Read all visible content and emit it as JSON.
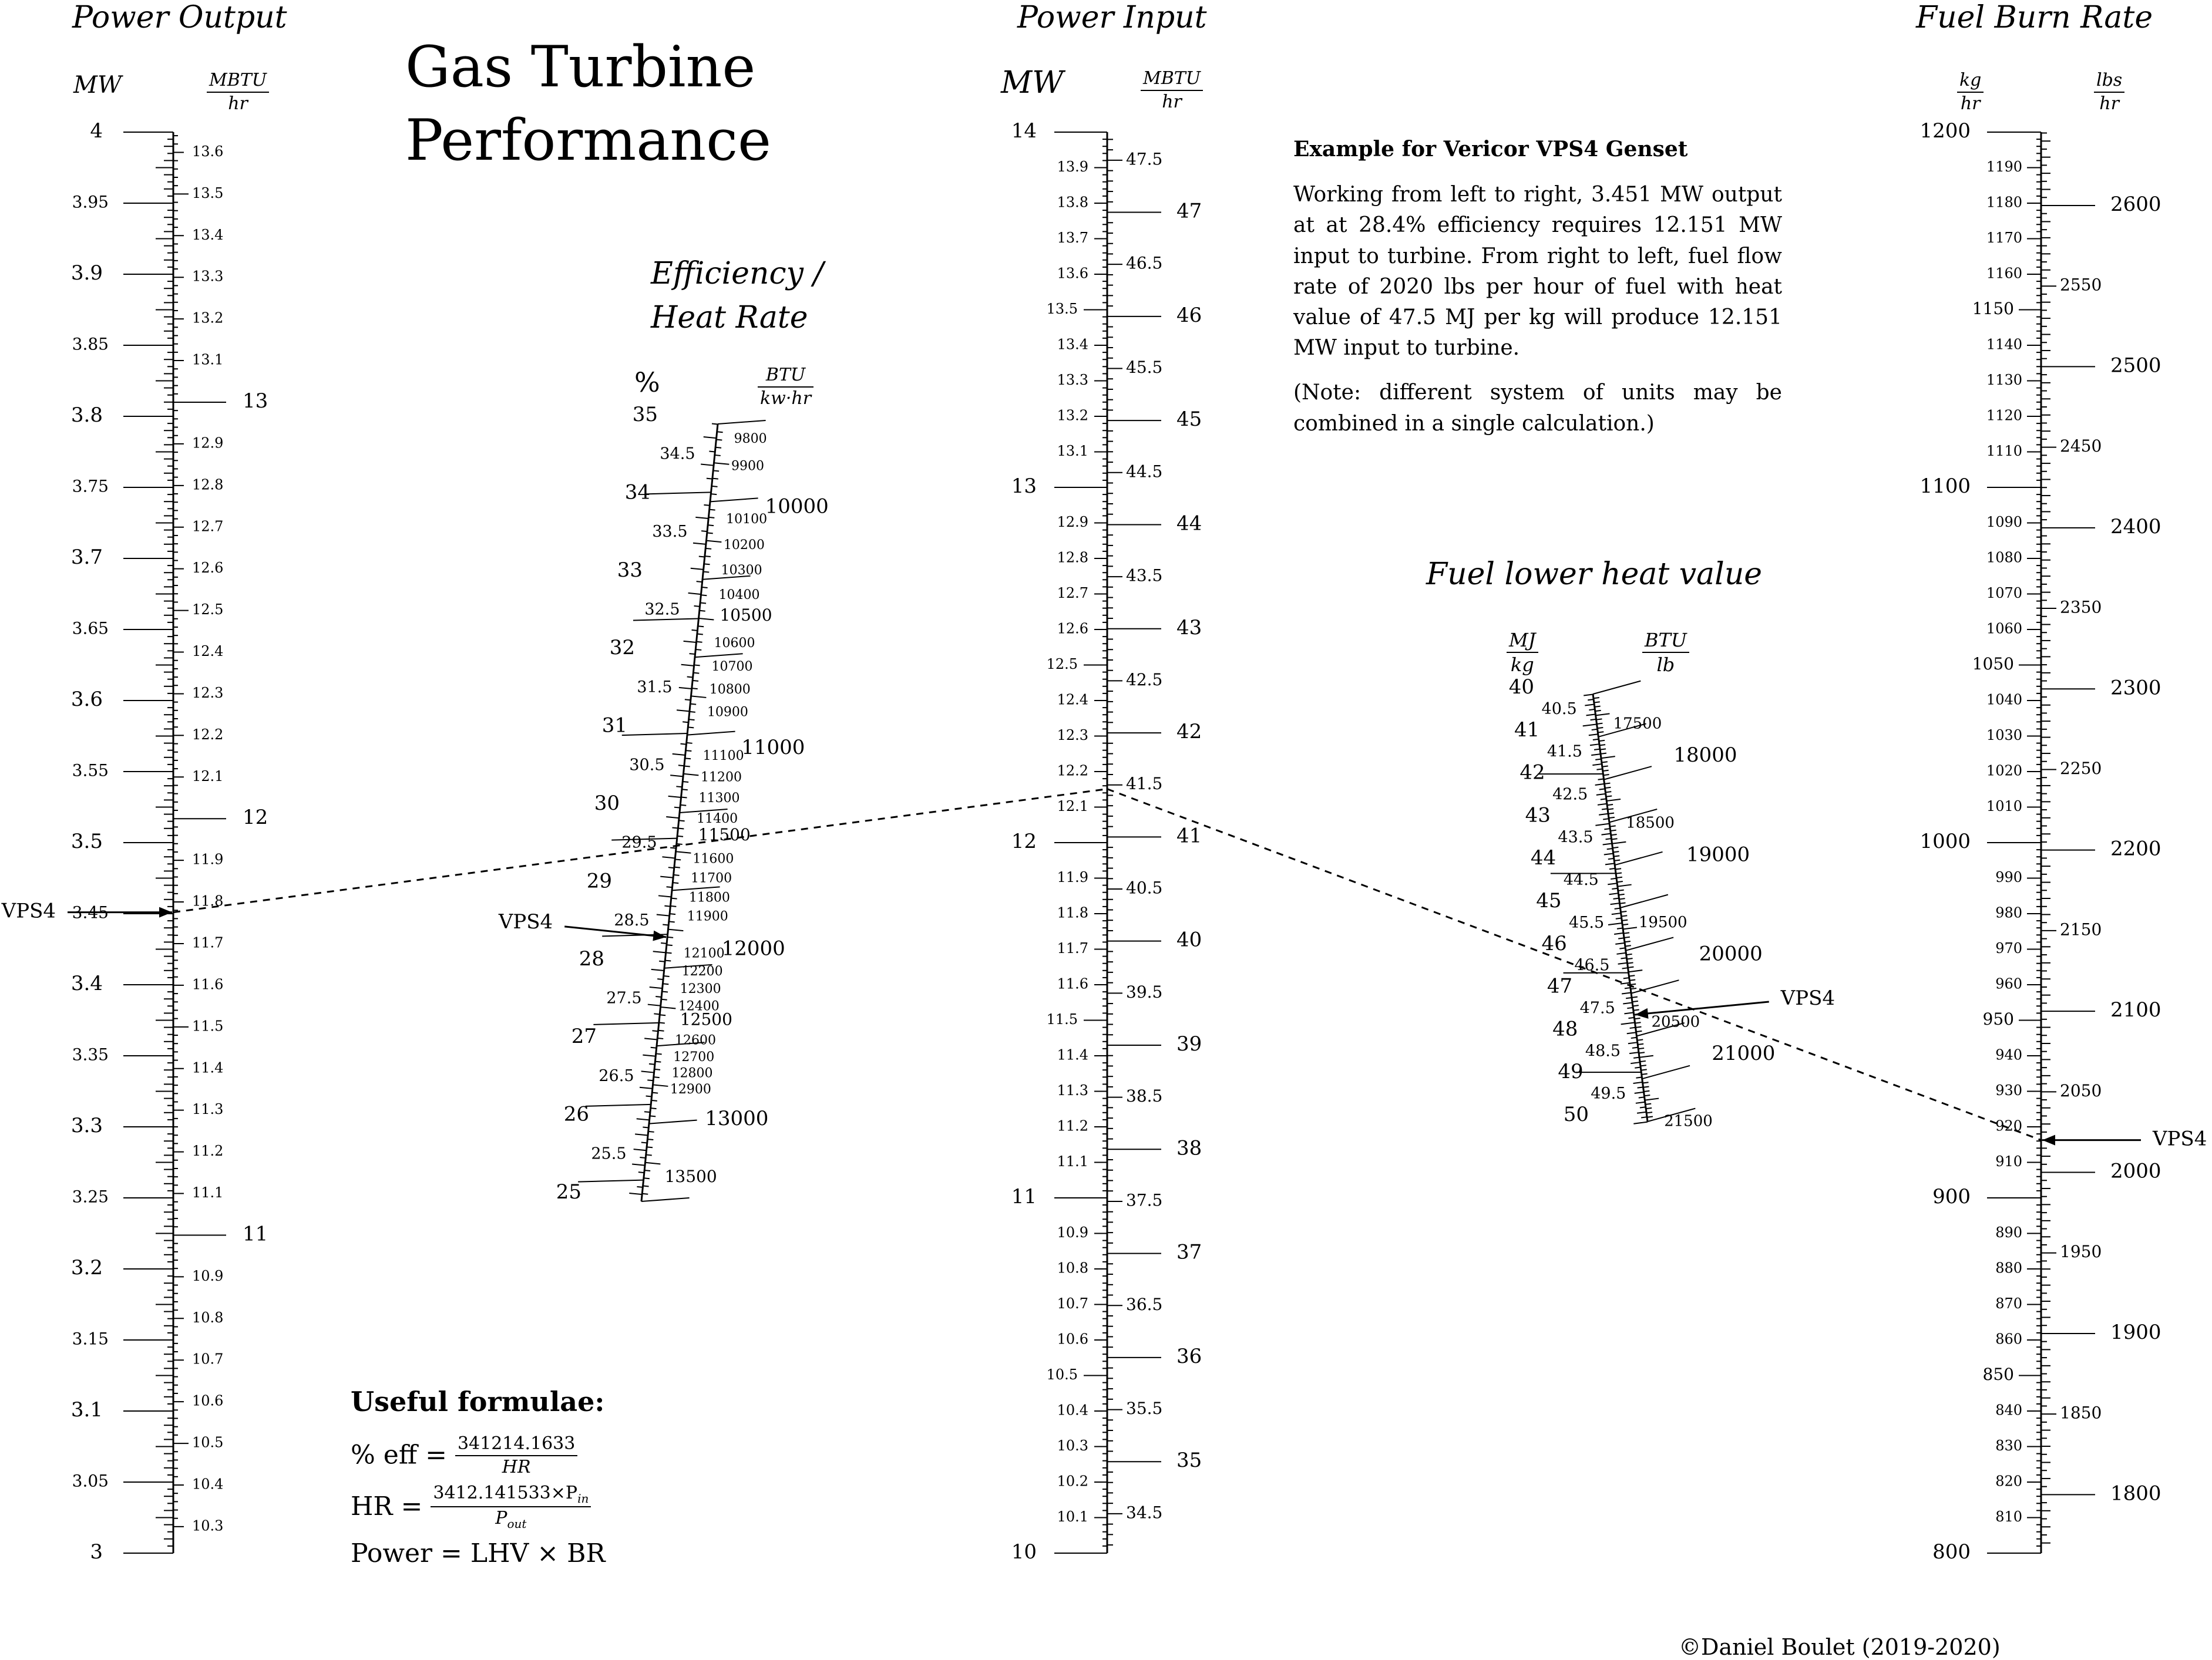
{
  "title_line1": "Gas Turbine",
  "title_line2": "Performance",
  "scales": {
    "power_output": {
      "title": "Power Output",
      "unit_left": "MW",
      "unit_right_num": "MBTU",
      "unit_right_den": "hr"
    },
    "efficiency": {
      "title_line1": "Efficiency /",
      "title_line2": "Heat Rate",
      "unit_left": "%",
      "unit_right_num": "BTU",
      "unit_right_den": "kw·hr"
    },
    "power_input": {
      "title": "Power Input",
      "unit_left": "MW",
      "unit_right_num": "MBTU",
      "unit_right_den": "hr"
    },
    "fuel_heat": {
      "title": "Fuel lower heat value",
      "unit_left_num": "MJ",
      "unit_left_den": "kg",
      "unit_right_num": "BTU",
      "unit_right_den": "lb"
    },
    "fuel_burn": {
      "title": "Fuel Burn Rate",
      "unit_left_num": "kg",
      "unit_left_den": "hr",
      "unit_right_num": "lbs",
      "unit_right_den": "hr"
    }
  },
  "example": {
    "heading": "Example for Vericor VPS4 Genset",
    "body": "Working from left to right, 3.451 MW output at at 28.4% efficiency requires 12.151 MW input to turbine. From right to left, fuel flow rate of 2020 lbs per hour of fuel with heat value of 47.5 MJ per kg will produce 12.151 MW input to turbine.",
    "note": "(Note: different system of units may be combined in a single calculation.)"
  },
  "formulae": {
    "heading": "Useful formulae:",
    "eff_lhs": "% eff =",
    "eff_num": "341214.1633",
    "eff_den": "HR",
    "hr_lhs": "HR =",
    "hr_num": "3412.141533×P",
    "hr_num_sub": "in",
    "hr_den": "P",
    "hr_den_sub": "out",
    "power": "Power = LHV × BR"
  },
  "marker_label": "VPS4",
  "copyright": "©Daniel Boulet (2019-2020)",
  "chart_data": {
    "type": "nomogram",
    "title": "Gas Turbine Performance",
    "example": {
      "name": "VPS4",
      "power_output_mw": 3.451,
      "efficiency_pct": 28.4,
      "power_input_mw": 12.151,
      "fuel_lhv_mj_per_kg": 47.5,
      "fuel_burn_lbs_per_hr": 2020
    },
    "power_output": {
      "mw_range": [
        3,
        4
      ],
      "mw_labels": [
        "3",
        "3.05",
        "3.1",
        "3.15",
        "3.2",
        "3.25",
        "3.3",
        "3.35",
        "3.4",
        "3.45",
        "3.5",
        "3.55",
        "3.6",
        "3.65",
        "3.7",
        "3.75",
        "3.8",
        "3.85",
        "3.9",
        "3.95",
        "4"
      ],
      "mbtu_major": [
        "11",
        "12",
        "13"
      ],
      "mbtu_minor": [
        "10.3",
        "10.4",
        "10.5",
        "10.6",
        "10.7",
        "10.8",
        "10.9",
        "11.1",
        "11.2",
        "11.3",
        "11.4",
        "11.5",
        "11.6",
        "11.7",
        "11.8",
        "11.9",
        "12.1",
        "12.2",
        "12.3",
        "12.4",
        "12.5",
        "12.6",
        "12.7",
        "12.8",
        "12.9",
        "13.1",
        "13.2",
        "13.3",
        "13.4",
        "13.5",
        "13.6"
      ]
    },
    "power_input": {
      "mw_range": [
        10,
        14
      ],
      "mw_labels": [
        "10",
        "10.1",
        "10.2",
        "10.3",
        "10.4",
        "10.5",
        "10.6",
        "10.7",
        "10.8",
        "10.9",
        "11",
        "11.1",
        "11.2",
        "11.3",
        "11.4",
        "11.5",
        "11.6",
        "11.7",
        "11.8",
        "11.9",
        "12",
        "12.1",
        "12.2",
        "12.3",
        "12.4",
        "12.5",
        "12.6",
        "12.7",
        "12.8",
        "12.9",
        "13",
        "13.1",
        "13.2",
        "13.3",
        "13.4",
        "13.5",
        "13.6",
        "13.7",
        "13.8",
        "13.9",
        "14"
      ],
      "mbtu_major": [
        "35",
        "36",
        "37",
        "38",
        "39",
        "40",
        "41",
        "42",
        "43",
        "44",
        "45",
        "46",
        "47"
      ],
      "mbtu_minor": [
        "34.5",
        "35.5",
        "36.5",
        "37.5",
        "38.5",
        "39.5",
        "40.5",
        "41.5",
        "42.5",
        "43.5",
        "44.5",
        "45.5",
        "46.5",
        "47.5"
      ]
    },
    "efficiency": {
      "pct_range": [
        25,
        35
      ],
      "pct_labels": [
        "25",
        "25.5",
        "26",
        "26.5",
        "27",
        "27.5",
        "28",
        "28.5",
        "29",
        "29.5",
        "30",
        "30.5",
        "31",
        "31.5",
        "32",
        "32.5",
        "33",
        "33.5",
        "34",
        "34.5",
        "35"
      ],
      "heat_rate_major": [
        "10000",
        "10500",
        "11000",
        "11500",
        "12000",
        "12500",
        "13000",
        "13500"
      ],
      "heat_rate_minor": [
        "9800",
        "9900",
        "10100",
        "10200",
        "10300",
        "10400",
        "10600",
        "10700",
        "10800",
        "10900",
        "11100",
        "11200",
        "11300",
        "11400",
        "11600",
        "11700",
        "11800",
        "11900",
        "12100",
        "12200",
        "12300",
        "12400",
        "12600",
        "12700",
        "12800",
        "12900"
      ]
    },
    "fuel_heat": {
      "mj_range": [
        40,
        50
      ],
      "mj_labels": [
        "40",
        "40.5",
        "41",
        "41.5",
        "42",
        "42.5",
        "43",
        "43.5",
        "44",
        "44.5",
        "45",
        "45.5",
        "46",
        "46.5",
        "47",
        "47.5",
        "48",
        "48.5",
        "49",
        "49.5",
        "50"
      ],
      "btu_major": [
        "18000",
        "19000",
        "20000",
        "21000"
      ],
      "btu_minor": [
        "17500",
        "18500",
        "19500",
        "20500",
        "21500"
      ]
    },
    "fuel_burn": {
      "kg_range": [
        800,
        1200
      ],
      "kg_labels": [
        "800",
        "810",
        "820",
        "830",
        "840",
        "850",
        "860",
        "870",
        "880",
        "890",
        "900",
        "910",
        "920",
        "930",
        "940",
        "950",
        "960",
        "970",
        "980",
        "990",
        "1000",
        "1010",
        "1020",
        "1030",
        "1040",
        "1050",
        "1060",
        "1070",
        "1080",
        "1090",
        "1100",
        "1110",
        "1120",
        "1130",
        "1140",
        "1150",
        "1160",
        "1170",
        "1180",
        "1190",
        "1200"
      ],
      "lbs_major": [
        "1800",
        "1900",
        "2000",
        "2100",
        "2200",
        "2300",
        "2400",
        "2500",
        "2600"
      ],
      "lbs_minor": [
        "1850",
        "1950",
        "2050",
        "2150",
        "2250",
        "2350",
        "2450",
        "2550"
      ]
    }
  }
}
